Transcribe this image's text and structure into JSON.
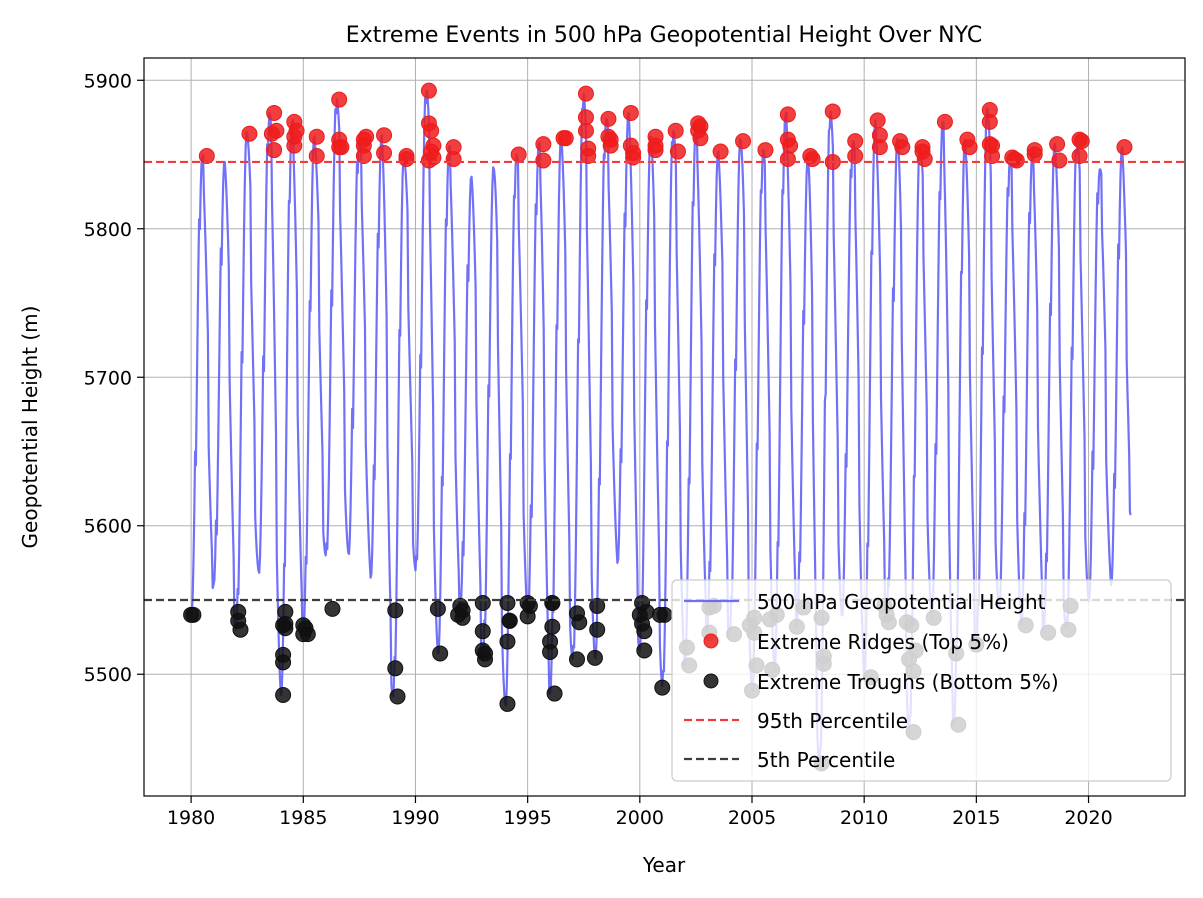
{
  "chart_data": {
    "type": "line",
    "title": "Extreme Events in 500 hPa Geopotential Height Over NYC",
    "xlabel": "Year",
    "ylabel": "Geopotential Height (m)",
    "xlim": [
      1977.9,
      2024.3
    ],
    "ylim": [
      5418,
      5915
    ],
    "xticks": [
      1980,
      1985,
      1990,
      1995,
      2000,
      2005,
      2010,
      2015,
      2020
    ],
    "yticks": [
      5500,
      5600,
      5700,
      5800,
      5900
    ],
    "grid": true,
    "legend_position": "lower right",
    "percentiles": {
      "p95": 5845,
      "p5": 5550
    },
    "series": [
      {
        "name": "500 hPa Geopotential Height",
        "kind": "line",
        "color": "#6262f7",
        "x": [
          1980.0,
          1980.5,
          1981.0,
          1981.5,
          1982.0,
          1982.5,
          1983.0,
          1983.5,
          1984.0,
          1984.5,
          1985.0,
          1985.5,
          1986.0,
          1986.5,
          1987.0,
          1987.5,
          1988.0,
          1988.5,
          1989.0,
          1989.5,
          1990.0,
          1990.5,
          1991.0,
          1991.5,
          1992.0,
          1992.5,
          1993.0,
          1993.5,
          1994.0,
          1994.5,
          1995.0,
          1995.5,
          1996.0,
          1996.5,
          1997.0,
          1997.5,
          1998.0,
          1998.5,
          1999.0,
          1999.5,
          2000.0,
          2000.5,
          2001.0,
          2001.5,
          2002.0,
          2002.5,
          2003.0,
          2003.5,
          2004.0,
          2004.5,
          2005.0,
          2005.5,
          2006.0,
          2006.5,
          2007.0,
          2007.5,
          2008.0,
          2008.5,
          2009.0,
          2009.5,
          2010.0,
          2010.5,
          2011.0,
          2011.5,
          2012.0,
          2012.5,
          2013.0,
          2013.5,
          2014.0,
          2014.5,
          2015.0,
          2015.5,
          2016.0,
          2016.5,
          2017.0,
          2017.5,
          2018.0,
          2018.5,
          2019.0,
          2019.5,
          2020.0,
          2020.5,
          2021.0,
          2021.5,
          2021.9
        ],
        "values": [
          5540,
          5849,
          5560,
          5845,
          5530,
          5864,
          5570,
          5878,
          5486,
          5872,
          5527,
          5862,
          5580,
          5887,
          5582,
          5860,
          5565,
          5863,
          5485,
          5849,
          5570,
          5893,
          5514,
          5855,
          5545,
          5835,
          5509,
          5840,
          5480,
          5850,
          5538,
          5857,
          5487,
          5861,
          5510,
          5891,
          5511,
          5874,
          5575,
          5878,
          5516,
          5862,
          5492,
          5866,
          5506,
          5871,
          5528,
          5852,
          5525,
          5859,
          5490,
          5853,
          5503,
          5877,
          5532,
          5848,
          5440,
          5879,
          5540,
          5859,
          5498,
          5873,
          5540,
          5860,
          5461,
          5855,
          5538,
          5872,
          5466,
          5860,
          5520,
          5880,
          5545,
          5848,
          5533,
          5851,
          5530,
          5857,
          5530,
          5860,
          5550,
          5840,
          5560,
          5855,
          5608
        ]
      },
      {
        "name": "Extreme Ridges (Top 5%)",
        "kind": "scatter",
        "color": "#ee1c1c",
        "x": [
          1980.7,
          1982.6,
          1983.6,
          1983.7,
          1983.7,
          1983.8,
          1984.6,
          1984.6,
          1984.6,
          1984.7,
          1985.6,
          1985.6,
          1986.6,
          1986.6,
          1986.6,
          1986.7,
          1987.7,
          1987.7,
          1987.7,
          1987.8,
          1988.6,
          1988.6,
          1989.6,
          1989.6,
          1990.6,
          1990.6,
          1990.6,
          1990.7,
          1990.7,
          1990.8,
          1990.8,
          1991.7,
          1991.7,
          1994.6,
          1995.7,
          1995.7,
          1996.6,
          1996.7,
          1997.6,
          1997.6,
          1997.6,
          1997.7,
          1997.7,
          1998.6,
          1998.6,
          1998.7,
          1998.7,
          1999.6,
          1999.6,
          1999.7,
          1999.7,
          2000.7,
          2000.7,
          2000.7,
          2001.6,
          2001.7,
          2002.6,
          2002.6,
          2002.7,
          2002.7,
          2003.6,
          2004.6,
          2005.6,
          2006.6,
          2006.6,
          2006.6,
          2006.7,
          2007.6,
          2007.7,
          2008.6,
          2008.6,
          2009.6,
          2009.6,
          2010.6,
          2010.7,
          2010.7,
          2011.6,
          2011.7,
          2012.6,
          2012.6,
          2012.7,
          2013.6,
          2014.6,
          2014.7,
          2015.6,
          2015.6,
          2015.6,
          2015.7,
          2015.7,
          2016.6,
          2016.7,
          2016.8,
          2017.6,
          2017.6,
          2018.6,
          2018.7,
          2019.6,
          2019.6,
          2019.7,
          2021.6
        ],
        "values": [
          5849,
          5864,
          5864,
          5878,
          5853,
          5866,
          5872,
          5862,
          5856,
          5866,
          5862,
          5849,
          5887,
          5855,
          5860,
          5855,
          5860,
          5856,
          5849,
          5862,
          5863,
          5851,
          5849,
          5847,
          5893,
          5871,
          5846,
          5866,
          5852,
          5856,
          5848,
          5855,
          5847,
          5850,
          5857,
          5846,
          5861,
          5861,
          5891,
          5875,
          5866,
          5854,
          5849,
          5874,
          5862,
          5860,
          5856,
          5878,
          5856,
          5851,
          5848,
          5862,
          5856,
          5853,
          5866,
          5852,
          5871,
          5866,
          5861,
          5869,
          5852,
          5859,
          5853,
          5877,
          5860,
          5847,
          5856,
          5849,
          5847,
          5879,
          5845,
          5859,
          5849,
          5873,
          5863,
          5855,
          5859,
          5855,
          5855,
          5852,
          5847,
          5872,
          5860,
          5855,
          5880,
          5872,
          5857,
          5849,
          5856,
          5848,
          5847,
          5846,
          5850,
          5853,
          5857,
          5846,
          5860,
          5849,
          5859,
          5855
        ]
      },
      {
        "name": "Extreme Troughs (Bottom 5%)",
        "kind": "scatter",
        "color": "#111111",
        "x": [
          1980.0,
          1980.1,
          1982.1,
          1982.1,
          1982.2,
          1984.1,
          1984.1,
          1984.1,
          1984.1,
          1984.2,
          1984.2,
          1984.2,
          1985.0,
          1985.0,
          1985.1,
          1985.2,
          1986.3,
          1989.1,
          1989.1,
          1989.2,
          1991.0,
          1991.1,
          1991.9,
          1992.0,
          1992.1,
          1992.1,
          1993.0,
          1993.0,
          1993.0,
          1993.1,
          1993.1,
          1994.1,
          1994.1,
          1994.1,
          1994.2,
          1994.2,
          1995.0,
          1995.0,
          1995.1,
          1996.0,
          1996.0,
          1996.1,
          1996.1,
          1996.1,
          1996.2,
          1997.2,
          1997.2,
          1997.3,
          1998.0,
          1998.1,
          1998.1,
          2000.0,
          2000.1,
          2000.1,
          2000.2,
          2000.2,
          2000.3,
          2000.9,
          2001.0,
          2001.1,
          2002.1,
          2002.2,
          2003.1,
          2003.1,
          2003.3,
          2004.2,
          2004.9,
          2005.0,
          2005.1,
          2005.1,
          2005.2,
          2005.8,
          2005.9,
          2006.1,
          2007.0,
          2007.3,
          2008.1,
          2008.1,
          2008.2,
          2008.2,
          2010.3,
          2010.9,
          2011.0,
          2011.1,
          2011.9,
          2012.0,
          2012.1,
          2012.2,
          2012.2,
          2012.3,
          2013.1,
          2014.1,
          2014.2,
          2015.0,
          2017.2,
          2018.2,
          2019.1,
          2019.2
        ],
        "values": [
          5540,
          5540,
          5536,
          5542,
          5530,
          5486,
          5508,
          5513,
          5533,
          5531,
          5542,
          5534,
          5527,
          5533,
          5531,
          5527,
          5544,
          5504,
          5543,
          5485,
          5544,
          5514,
          5540,
          5546,
          5543,
          5538,
          5529,
          5548,
          5516,
          5510,
          5514,
          5480,
          5548,
          5522,
          5536,
          5536,
          5548,
          5539,
          5546,
          5515,
          5522,
          5548,
          5532,
          5548,
          5487,
          5541,
          5510,
          5535,
          5511,
          5546,
          5530,
          5540,
          5534,
          5548,
          5516,
          5529,
          5542,
          5540,
          5491,
          5540,
          5518,
          5506,
          5545,
          5528,
          5546,
          5527,
          5533,
          5489,
          5538,
          5528,
          5506,
          5537,
          5503,
          5540,
          5532,
          5545,
          5440,
          5538,
          5507,
          5512,
          5498,
          5546,
          5540,
          5535,
          5535,
          5510,
          5533,
          5461,
          5502,
          5516,
          5538,
          5514,
          5466,
          5520,
          5533,
          5528,
          5530,
          5546
        ]
      },
      {
        "name": "95th Percentile",
        "kind": "hline",
        "color": "#f03c3c",
        "dash": "dashed"
      },
      {
        "name": "5th Percentile",
        "kind": "hline",
        "color": "#3d3d3d",
        "dash": "dashed"
      }
    ]
  }
}
